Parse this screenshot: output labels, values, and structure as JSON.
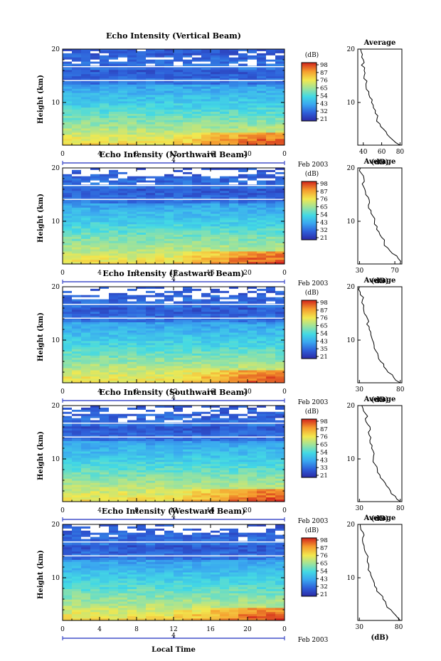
{
  "figure": {
    "xlabel": "Local Time",
    "date_label": "Feb 2003",
    "midnight_marker": "4",
    "colorbar_unit": "(dB)",
    "average_title": "Average",
    "average_unit": "(dB)"
  },
  "chart_data": [
    {
      "type": "heatmap",
      "title": "Echo Intensity (Vertical Beam)",
      "ylabel": "Height (km)",
      "xticks": [
        "0",
        "4",
        "8",
        "12",
        "16",
        "20",
        "0"
      ],
      "yticks": [
        "20",
        "10"
      ],
      "xlim": [
        0,
        24
      ],
      "ylim": [
        2,
        20
      ],
      "colorbar_ticks": [
        "98",
        "87",
        "76",
        "65",
        "54",
        "43",
        "32",
        "21"
      ],
      "average_profile": {
        "xticks": [
          "40",
          "60",
          "80"
        ],
        "xlim": [
          34,
          82
        ],
        "height": [
          2,
          3,
          4,
          5,
          6,
          7,
          8,
          9,
          10,
          11,
          12,
          13,
          14,
          15,
          16,
          17,
          18,
          19,
          20
        ],
        "value": [
          80,
          72,
          66,
          62,
          58,
          55,
          53,
          51,
          49,
          47,
          46,
          43,
          44,
          41,
          41,
          38,
          40,
          39,
          37
        ]
      }
    },
    {
      "type": "heatmap",
      "title": "Echo Intensity (Northward Beam)",
      "ylabel": "Height (km)",
      "xticks": [
        "0",
        "4",
        "8",
        "12",
        "16",
        "20",
        "0"
      ],
      "yticks": [
        "20",
        "10"
      ],
      "xlim": [
        0,
        24
      ],
      "ylim": [
        2,
        20
      ],
      "colorbar_ticks": [
        "98",
        "87",
        "76",
        "65",
        "54",
        "43",
        "32",
        "21"
      ],
      "average_profile": {
        "xticks": [
          "30",
          "70"
        ],
        "xlim": [
          28,
          78
        ],
        "height": [
          2,
          3,
          4,
          5,
          6,
          7,
          8,
          9,
          10,
          11,
          12,
          13,
          14,
          15,
          16,
          17,
          18,
          19,
          20
        ],
        "value": [
          76,
          74,
          67,
          62,
          58,
          55,
          52,
          50,
          47,
          45,
          43,
          40,
          41,
          37,
          36,
          33,
          35,
          32,
          31
        ]
      }
    },
    {
      "type": "heatmap",
      "title": "Echo Intensity (Eastward Beam)",
      "ylabel": "Height (km)",
      "xticks": [
        "0",
        "4",
        "8",
        "12",
        "16",
        "20",
        "0"
      ],
      "yticks": [
        "20",
        "10"
      ],
      "xlim": [
        0,
        24
      ],
      "ylim": [
        2,
        20
      ],
      "colorbar_ticks": [
        "98",
        "87",
        "76",
        "65",
        "54",
        "43",
        "35",
        "21"
      ],
      "average_profile": {
        "xlabel": "(dB)",
        "xticks": [
          "30",
          "80"
        ],
        "xlim": [
          28,
          82
        ],
        "height": [
          2,
          3,
          4,
          5,
          6,
          7,
          8,
          9,
          10,
          11,
          12,
          13,
          14,
          15,
          16,
          17,
          18,
          19,
          20
        ],
        "value": [
          80,
          72,
          65,
          60,
          56,
          53,
          50,
          48,
          46,
          44,
          42,
          39,
          40,
          36,
          35,
          33,
          35,
          31,
          30
        ]
      }
    },
    {
      "type": "heatmap",
      "title": "Echo Intensity (Southward Beam)",
      "ylabel": "Height (km)",
      "xticks": [
        "0",
        "4",
        "8",
        "12",
        "16",
        "20",
        "0"
      ],
      "yticks": [
        "20",
        "10"
      ],
      "xlim": [
        0,
        24
      ],
      "ylim": [
        2,
        20
      ],
      "colorbar_ticks": [
        "98",
        "87",
        "76",
        "65",
        "54",
        "43",
        "33",
        "21"
      ],
      "average_profile": {
        "xlabel": "(dB)",
        "xticks": [
          "30",
          "80"
        ],
        "xlim": [
          28,
          82
        ],
        "height": [
          2,
          3,
          4,
          5,
          6,
          7,
          8,
          9,
          10,
          11,
          12,
          13,
          14,
          15,
          16,
          17,
          18,
          19,
          20
        ],
        "value": [
          80,
          74,
          68,
          63,
          59,
          55,
          52,
          49,
          47,
          48,
          45,
          43,
          44,
          41,
          43,
          38,
          40,
          35,
          33
        ]
      }
    },
    {
      "type": "heatmap",
      "title": "Echo Intensity (Westward Beam)",
      "ylabel": "Height (km)",
      "xlabel": "Local Time",
      "xticks": [
        "0",
        "4",
        "8",
        "12",
        "16",
        "20",
        "0"
      ],
      "yticks": [
        "20",
        "10"
      ],
      "xlim": [
        0,
        24
      ],
      "ylim": [
        2,
        20
      ],
      "colorbar_ticks": [
        "98",
        "87",
        "76",
        "65",
        "54",
        "43",
        "32",
        "21"
      ],
      "average_profile": {
        "xlabel": "(dB)",
        "xticks": [
          "30",
          "80"
        ],
        "xlim": [
          28,
          84
        ],
        "height": [
          2,
          3,
          4,
          5,
          6,
          7,
          8,
          9,
          10,
          11,
          12,
          13,
          14,
          15,
          16,
          17,
          18,
          19,
          20
        ],
        "value": [
          82,
          76,
          70,
          64,
          60,
          56,
          52,
          49,
          46,
          44,
          42,
          40,
          41,
          37,
          36,
          34,
          36,
          32,
          31
        ]
      }
    }
  ]
}
